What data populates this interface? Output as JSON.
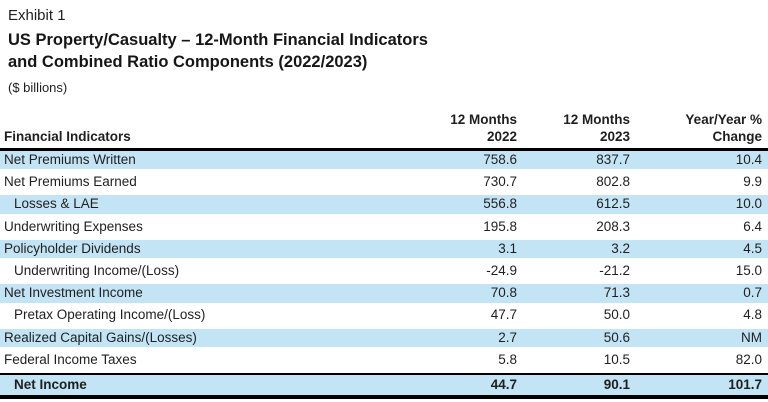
{
  "exhibit_label": "Exhibit 1",
  "title": {
    "line1": "US Property/Casualty – 12-Month Financial Indicators",
    "line2": "and Combined Ratio Components (2022/2023)"
  },
  "units_note": "($ billions)",
  "colors": {
    "row_highlight": "#c3e4f5",
    "border": "#000000",
    "text": "#1f1f1f"
  },
  "table": {
    "header": {
      "indicator": "Financial Indicators",
      "col_2022": "12 Months\n2022",
      "col_2023": "12 Months\n2023",
      "col_change": "Year/Year %\nChange"
    },
    "rows": [
      {
        "label": "Net Premiums Written",
        "v2022": "758.6",
        "v2023": "837.7",
        "change": "10.4",
        "shaded": true,
        "indent": false,
        "bold": false
      },
      {
        "label": "Net Premiums Earned",
        "v2022": "730.7",
        "v2023": "802.8",
        "change": "9.9",
        "shaded": false,
        "indent": false,
        "bold": false
      },
      {
        "label": "Losses & LAE",
        "v2022": "556.8",
        "v2023": "612.5",
        "change": "10.0",
        "shaded": true,
        "indent": true,
        "bold": false
      },
      {
        "label": "Underwriting Expenses",
        "v2022": "195.8",
        "v2023": "208.3",
        "change": "6.4",
        "shaded": false,
        "indent": false,
        "bold": false
      },
      {
        "label": "Policyholder Dividends",
        "v2022": "3.1",
        "v2023": "3.2",
        "change": "4.5",
        "shaded": true,
        "indent": false,
        "bold": false
      },
      {
        "label": "Underwriting Income/(Loss)",
        "v2022": "-24.9",
        "v2023": "-21.2",
        "change": "15.0",
        "shaded": false,
        "indent": true,
        "bold": false
      },
      {
        "label": "Net Investment Income",
        "v2022": "70.8",
        "v2023": "71.3",
        "change": "0.7",
        "shaded": true,
        "indent": false,
        "bold": false
      },
      {
        "label": "Pretax Operating Income/(Loss)",
        "v2022": "47.7",
        "v2023": "50.0",
        "change": "4.8",
        "shaded": false,
        "indent": true,
        "bold": false
      },
      {
        "label": "Realized Capital Gains/(Losses)",
        "v2022": "2.7",
        "v2023": "50.6",
        "change": "NM",
        "shaded": true,
        "indent": false,
        "bold": false
      },
      {
        "label": "Federal Income Taxes",
        "v2022": "5.8",
        "v2023": "10.5",
        "change": "82.0",
        "shaded": false,
        "indent": false,
        "bold": false
      },
      {
        "label": "Net Income",
        "v2022": "44.7",
        "v2023": "90.1",
        "change": "101.7",
        "shaded": true,
        "indent": true,
        "bold": true,
        "total": true
      }
    ]
  }
}
